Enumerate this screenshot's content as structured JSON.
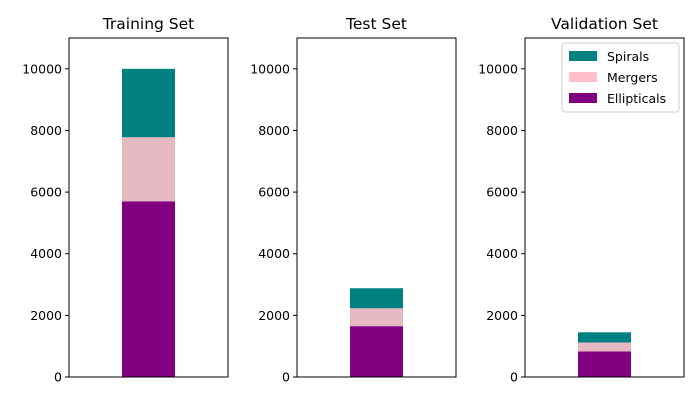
{
  "chart_data": [
    {
      "type": "bar",
      "stacked": true,
      "title": "Training Set",
      "ylim": [
        0,
        11000
      ],
      "yticks": [
        "0",
        "2000",
        "4000",
        "6000",
        "8000",
        "10000"
      ],
      "series": [
        {
          "name": "Ellipticals",
          "values": [
            5700
          ]
        },
        {
          "name": "Mergers",
          "values": [
            2080
          ]
        },
        {
          "name": "Spirals",
          "values": [
            2220
          ]
        }
      ]
    },
    {
      "type": "bar",
      "stacked": true,
      "title": "Test Set",
      "ylim": [
        0,
        11000
      ],
      "yticks": [
        "0",
        "2000",
        "4000",
        "6000",
        "8000",
        "10000"
      ],
      "series": [
        {
          "name": "Ellipticals",
          "values": [
            1650
          ]
        },
        {
          "name": "Mergers",
          "values": [
            580
          ]
        },
        {
          "name": "Spirals",
          "values": [
            650
          ]
        }
      ]
    },
    {
      "type": "bar",
      "stacked": true,
      "title": "Validation Set",
      "ylim": [
        0,
        11000
      ],
      "yticks": [
        "0",
        "2000",
        "4000",
        "6000",
        "8000",
        "10000"
      ],
      "legend": {
        "placement": "top-right",
        "entries": [
          "Spirals",
          "Mergers",
          "Ellipticals"
        ]
      },
      "series": [
        {
          "name": "Ellipticals",
          "values": [
            830
          ]
        },
        {
          "name": "Mergers",
          "values": [
            290
          ]
        },
        {
          "name": "Spirals",
          "values": [
            330
          ]
        }
      ]
    }
  ],
  "colors": {
    "Ellipticals": "#800080",
    "Mergers": "#e6b8c2",
    "Spirals": "#008080",
    "legend_Mergers": "#ffc0cb"
  }
}
